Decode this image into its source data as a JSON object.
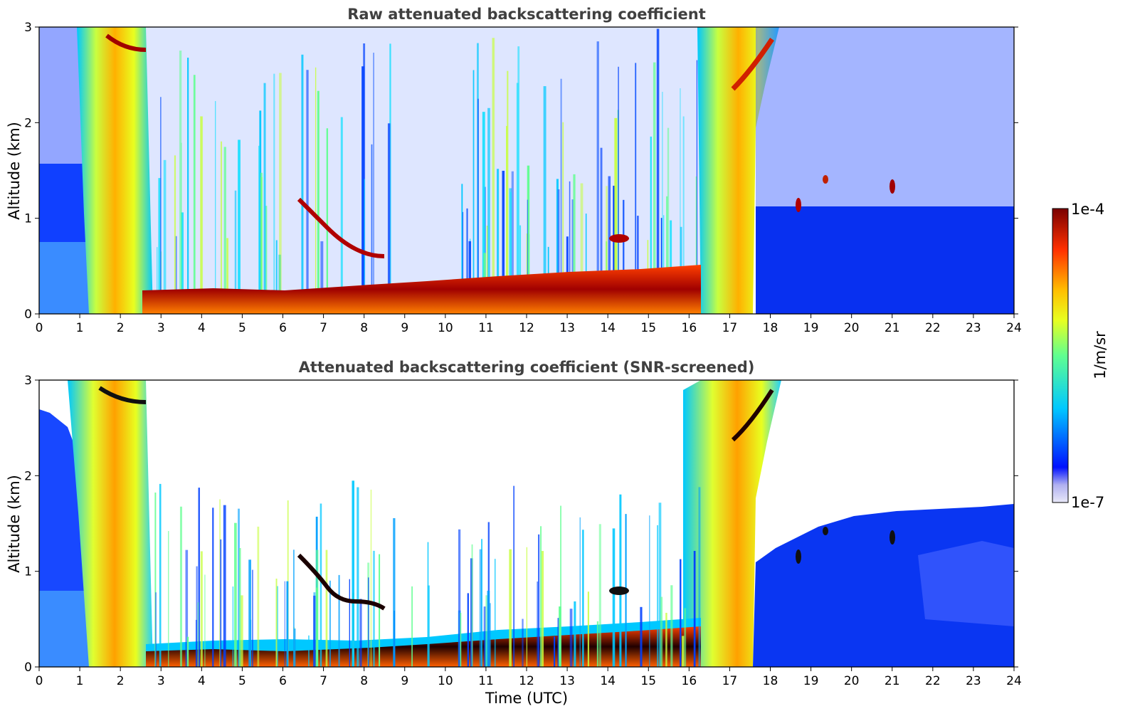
{
  "chart_data": [
    {
      "type": "heatmap",
      "title": "Raw attenuated backscattering coefficient",
      "xlabel": "",
      "ylabel": "Altitude (km)",
      "xlim": [
        0,
        24
      ],
      "ylim": [
        0,
        3
      ],
      "x_ticks": [
        "0",
        "1",
        "2",
        "3",
        "4",
        "5",
        "6",
        "7",
        "8",
        "9",
        "10",
        "11",
        "12",
        "13",
        "14",
        "15",
        "16",
        "17",
        "18",
        "19",
        "20",
        "21",
        "22",
        "23",
        "24"
      ],
      "y_ticks": [
        "0",
        "1",
        "2",
        "3"
      ]
    },
    {
      "type": "heatmap",
      "title": "Attenuated backscattering coefficient (SNR-screened)",
      "xlabel": "Time (UTC)",
      "ylabel": "Altitude (km)",
      "xlim": [
        0,
        24
      ],
      "ylim": [
        0,
        3
      ],
      "x_ticks": [
        "0",
        "1",
        "2",
        "3",
        "4",
        "5",
        "6",
        "7",
        "8",
        "9",
        "10",
        "11",
        "12",
        "13",
        "14",
        "15",
        "16",
        "17",
        "18",
        "19",
        "20",
        "21",
        "22",
        "23",
        "24"
      ],
      "y_ticks": [
        "0",
        "1",
        "2",
        "3"
      ]
    }
  ],
  "colorbar": {
    "max_label": "1e-4",
    "min_label": "1e-7",
    "unit_label": "1/m/sr",
    "scale": "log",
    "colormap": "jet"
  },
  "colors": {
    "very_low": "#e8e8f8",
    "low": "#0022ee",
    "mid_low": "#00c8ff",
    "mid": "#c8ff40",
    "mid_high": "#ffc000",
    "high": "#ff3000",
    "very_high": "#8b0000"
  }
}
